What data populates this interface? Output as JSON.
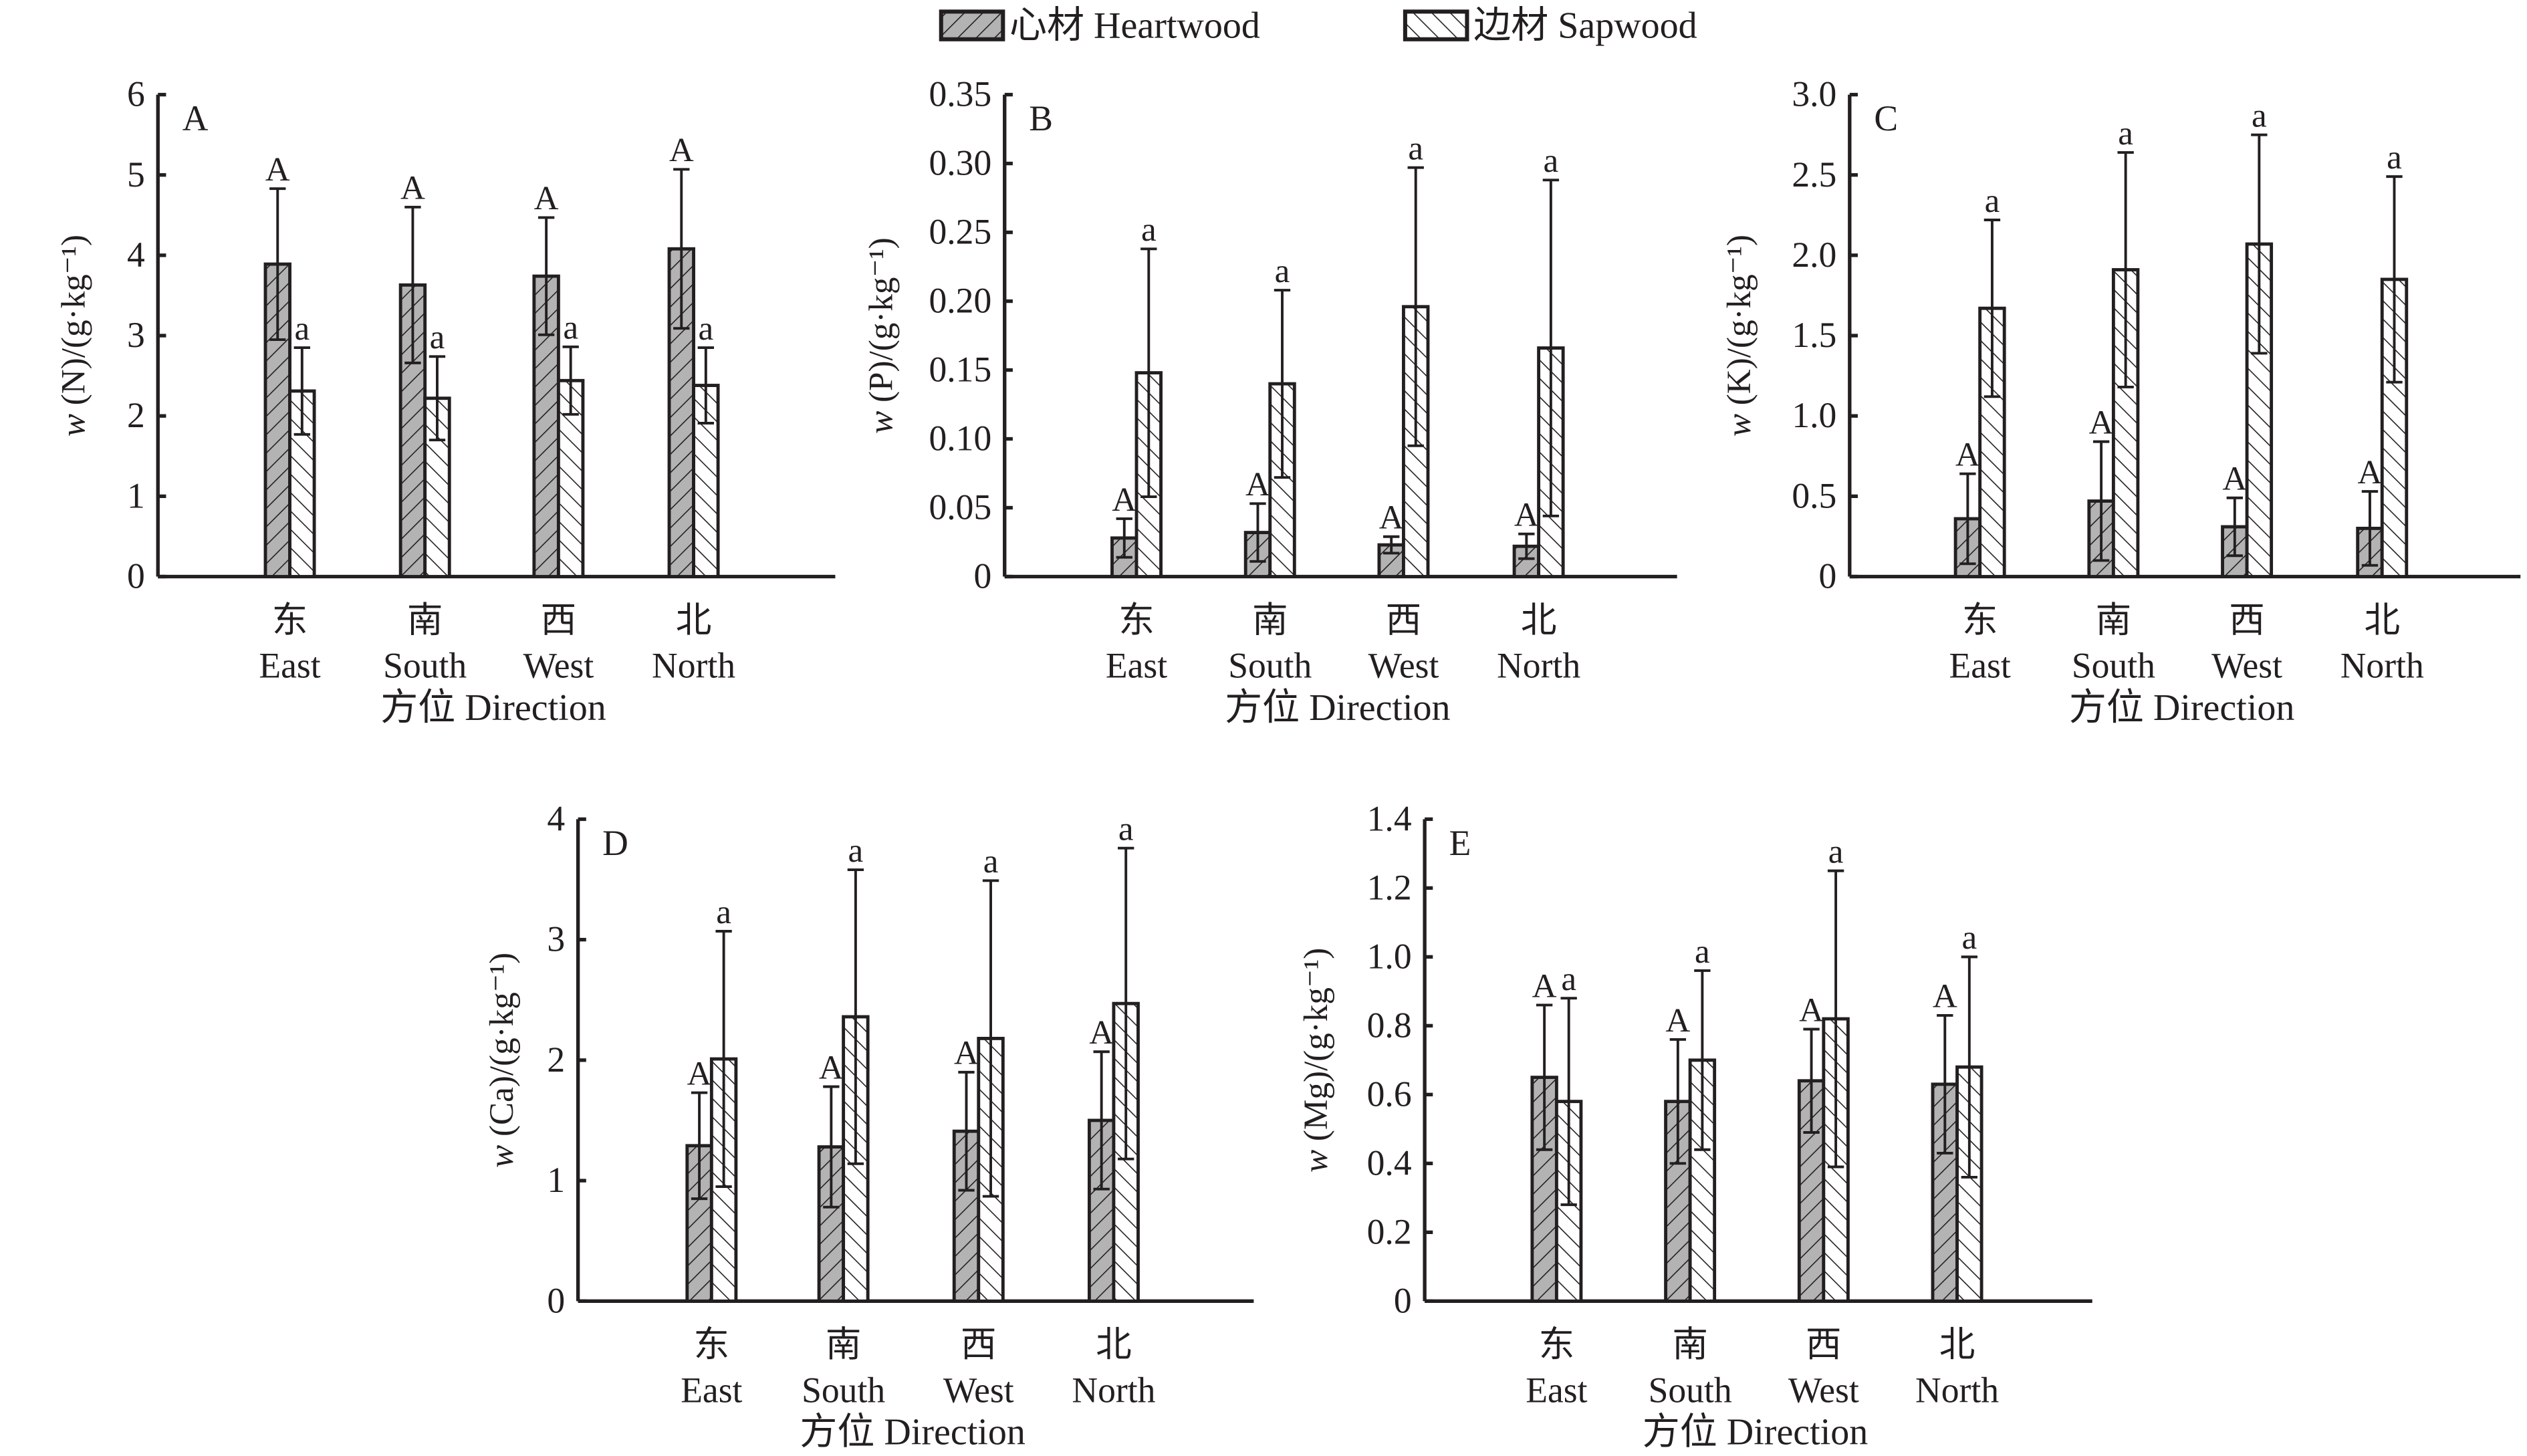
{
  "legend": {
    "heartwood": "心材 Heartwood",
    "sapwood": "边材 Sapwood"
  },
  "colors": {
    "heartwood_fill": "#b3b3b3",
    "sapwood_fill": "#ffffff",
    "line": "#231f20"
  },
  "chart_data": [
    {
      "type": "bar",
      "panel": "A",
      "ylabel_var": "w",
      "ylabel": "(N)/(g·kg⁻¹)",
      "xlabel": "方位 Direction",
      "categories_cn": [
        "东",
        "南",
        "西",
        "北"
      ],
      "categories": [
        "East",
        "South",
        "West",
        "North"
      ],
      "ylim": [
        0,
        6
      ],
      "yticks": [
        "0",
        "1",
        "2",
        "3",
        "4",
        "5",
        "6"
      ],
      "ytick_values": [
        0,
        1,
        2,
        3,
        4,
        5,
        6
      ],
      "series": [
        {
          "name": "心材 Heartwood",
          "values": [
            3.89,
            3.63,
            3.74,
            4.08
          ],
          "errors": [
            0.94,
            0.97,
            0.73,
            0.99
          ],
          "letters": [
            "A",
            "A",
            "A",
            "A"
          ]
        },
        {
          "name": "边材 Sapwood",
          "values": [
            2.31,
            2.22,
            2.44,
            2.38
          ],
          "errors": [
            0.54,
            0.52,
            0.42,
            0.47
          ],
          "letters": [
            "a",
            "a",
            "a",
            "a"
          ]
        }
      ]
    },
    {
      "type": "bar",
      "panel": "B",
      "ylabel_var": "w",
      "ylabel": "(P)/(g·kg⁻¹)",
      "xlabel": "方位 Direction",
      "categories_cn": [
        "东",
        "南",
        "西",
        "北"
      ],
      "categories": [
        "East",
        "South",
        "West",
        "North"
      ],
      "ylim": [
        0,
        0.35
      ],
      "yticks": [
        "0",
        "0.05",
        "0.10",
        "0.15",
        "0.20",
        "0.25",
        "0.30",
        "0.35"
      ],
      "ytick_values": [
        0,
        0.05,
        0.1,
        0.15,
        0.2,
        0.25,
        0.3,
        0.35
      ],
      "series": [
        {
          "name": "心材 Heartwood",
          "values": [
            0.028,
            0.032,
            0.023,
            0.022
          ],
          "errors": [
            0.014,
            0.021,
            0.006,
            0.009
          ],
          "letters": [
            "A",
            "A",
            "A",
            "A"
          ]
        },
        {
          "name": "边材 Sapwood",
          "values": [
            0.148,
            0.14,
            0.196,
            0.166
          ],
          "errors": [
            0.09,
            0.068,
            0.101,
            0.122
          ],
          "letters": [
            "a",
            "a",
            "a",
            "a"
          ]
        }
      ]
    },
    {
      "type": "bar",
      "panel": "C",
      "ylabel_var": "w",
      "ylabel": "(K)/(g·kg⁻¹)",
      "xlabel": "方位 Direction",
      "categories_cn": [
        "东",
        "南",
        "西",
        "北"
      ],
      "categories": [
        "East",
        "South",
        "West",
        "North"
      ],
      "ylim": [
        0,
        3.0
      ],
      "yticks": [
        "0",
        "0.5",
        "1.0",
        "1.5",
        "2.0",
        "2.5",
        "3.0"
      ],
      "ytick_values": [
        0,
        0.5,
        1.0,
        1.5,
        2.0,
        2.5,
        3.0
      ],
      "series": [
        {
          "name": "心材 Heartwood",
          "values": [
            0.36,
            0.47,
            0.31,
            0.3
          ],
          "errors": [
            0.28,
            0.37,
            0.18,
            0.23
          ],
          "letters": [
            "A",
            "A",
            "A",
            "A"
          ]
        },
        {
          "name": "边材 Sapwood",
          "values": [
            1.67,
            1.91,
            2.07,
            1.85
          ],
          "errors": [
            0.55,
            0.73,
            0.68,
            0.64
          ],
          "letters": [
            "a",
            "a",
            "a",
            "a"
          ]
        }
      ]
    },
    {
      "type": "bar",
      "panel": "D",
      "ylabel_var": "w",
      "ylabel": "(Ca)/(g·kg⁻¹)",
      "xlabel": "方位 Direction",
      "categories_cn": [
        "东",
        "南",
        "西",
        "北"
      ],
      "categories": [
        "East",
        "South",
        "West",
        "North"
      ],
      "ylim": [
        0,
        4
      ],
      "yticks": [
        "0",
        "1",
        "2",
        "3",
        "4"
      ],
      "ytick_values": [
        0,
        1,
        2,
        3,
        4
      ],
      "series": [
        {
          "name": "心材 Heartwood",
          "values": [
            1.29,
            1.28,
            1.41,
            1.5
          ],
          "errors": [
            0.44,
            0.5,
            0.49,
            0.57
          ],
          "letters": [
            "A",
            "A",
            "A",
            "A"
          ]
        },
        {
          "name": "边材 Sapwood",
          "values": [
            2.01,
            2.36,
            2.18,
            2.47
          ],
          "errors": [
            1.06,
            1.22,
            1.31,
            1.29
          ],
          "letters": [
            "a",
            "a",
            "a",
            "a"
          ]
        }
      ]
    },
    {
      "type": "bar",
      "panel": "E",
      "ylabel_var": "w",
      "ylabel": "(Mg)/(g·kg⁻¹)",
      "xlabel": "方位 Direction",
      "categories_cn": [
        "东",
        "南",
        "西",
        "北"
      ],
      "categories": [
        "East",
        "South",
        "West",
        "North"
      ],
      "ylim": [
        0,
        1.4
      ],
      "yticks": [
        "0",
        "0.2",
        "0.4",
        "0.6",
        "0.8",
        "1.0",
        "1.2",
        "1.4"
      ],
      "ytick_values": [
        0,
        0.2,
        0.4,
        0.6,
        0.8,
        1.0,
        1.2,
        1.4
      ],
      "series": [
        {
          "name": "心材 Heartwood",
          "values": [
            0.65,
            0.58,
            0.64,
            0.63
          ],
          "errors": [
            0.21,
            0.18,
            0.15,
            0.2
          ],
          "letters": [
            "A",
            "A",
            "A",
            "A"
          ]
        },
        {
          "name": "边材 Sapwood",
          "values": [
            0.58,
            0.7,
            0.82,
            0.68
          ],
          "errors": [
            0.3,
            0.26,
            0.43,
            0.32
          ],
          "letters": [
            "a",
            "a",
            "a",
            "a"
          ]
        }
      ]
    }
  ]
}
